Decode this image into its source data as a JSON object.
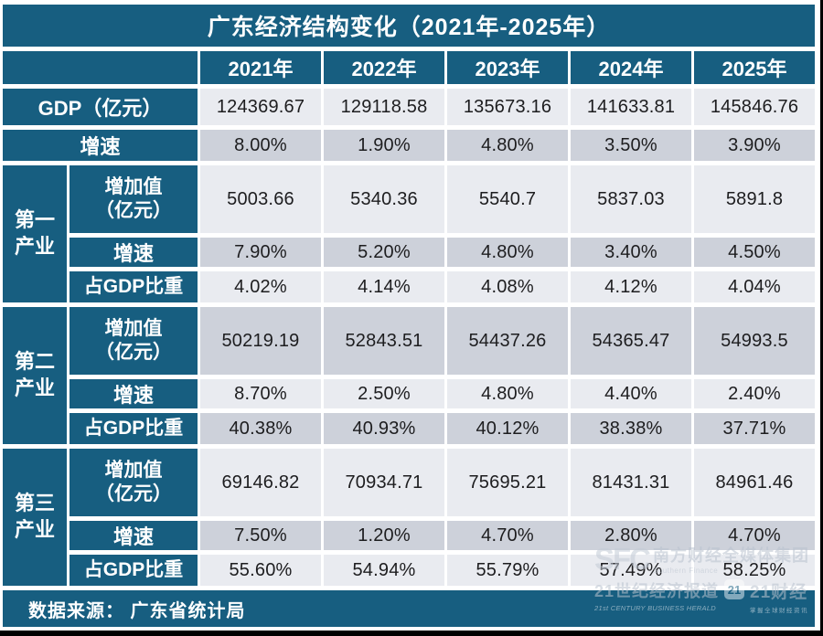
{
  "title": "广东经济结构变化（2021年-2025年）",
  "source": "数据来源： 广东省统计局",
  "colors": {
    "header_teal": "#175E80",
    "row_light": "#E9EBF0",
    "row_dark": "#CDD1DA",
    "text_dark": "#1D1D1F",
    "gap_white": "#FFFFFF",
    "edge_black": "#000000"
  },
  "chart_data": {
    "type": "table",
    "title": "广东经济结构变化（2021年-2025年）",
    "columns": [
      "2021年",
      "2022年",
      "2023年",
      "2024年",
      "2025年"
    ],
    "rows": [
      {
        "group": "",
        "label": "GDP（亿元）",
        "shade": "light",
        "values": [
          "124369.67",
          "129118.58",
          "135673.16",
          "141633.81",
          "145846.76"
        ]
      },
      {
        "group": "",
        "label": "增速",
        "shade": "dark",
        "values": [
          "8.00%",
          "1.90%",
          "4.80%",
          "3.50%",
          "3.90%"
        ]
      },
      {
        "group": "第一\n产业",
        "label": "增加值\n（亿元）",
        "shade": "light",
        "values": [
          "5003.66",
          "5340.36",
          "5540.7",
          "5837.03",
          "5891.8"
        ]
      },
      {
        "group": "",
        "label": "增速",
        "shade": "dark",
        "values": [
          "7.90%",
          "5.20%",
          "4.80%",
          "3.40%",
          "4.50%"
        ]
      },
      {
        "group": "",
        "label": "占GDP比重",
        "shade": "light",
        "values": [
          "4.02%",
          "4.14%",
          "4.08%",
          "4.12%",
          "4.04%"
        ]
      },
      {
        "group": "第二\n产业",
        "label": "增加值\n（亿元）",
        "shade": "dark",
        "values": [
          "50219.19",
          "52843.51",
          "54437.26",
          "54365.47",
          "54993.5"
        ]
      },
      {
        "group": "",
        "label": "增速",
        "shade": "light",
        "values": [
          "8.70%",
          "2.50%",
          "4.80%",
          "4.40%",
          "2.40%"
        ]
      },
      {
        "group": "",
        "label": "占GDP比重",
        "shade": "dark",
        "values": [
          "40.38%",
          "40.93%",
          "40.12%",
          "38.38%",
          "37.71%"
        ]
      },
      {
        "group": "第三\n产业",
        "label": "增加值\n（亿元）",
        "shade": "light",
        "values": [
          "69146.82",
          "70934.71",
          "75695.21",
          "81431.31",
          "84961.46"
        ]
      },
      {
        "group": "",
        "label": "增速",
        "shade": "dark",
        "values": [
          "7.50%",
          "1.20%",
          "4.70%",
          "2.80%",
          "4.70%"
        ]
      },
      {
        "group": "",
        "label": "占GDP比重",
        "shade": "light",
        "values": [
          "55.60%",
          "54.94%",
          "55.79%",
          "57.49%",
          "58.25%"
        ]
      }
    ]
  },
  "watermark": {
    "sfc_logo": "SFC",
    "sfc_cn": "南方财经全媒体集团",
    "sfc_en": "Southern Finance",
    "herald_cn": "21世纪经济报道",
    "herald_en": "21st CENTURY BUSINESS HERALD",
    "badge": "21",
    "app_cn": "21财经",
    "app_slogan": "掌握全球财经资讯"
  }
}
